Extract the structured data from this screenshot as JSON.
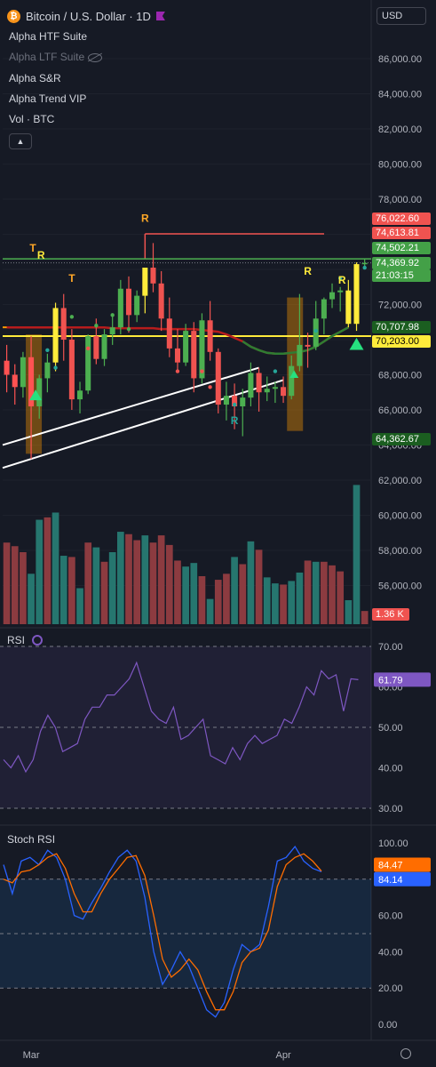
{
  "header": {
    "title": "Bitcoin / U.S. Dollar · 1D",
    "currency": "USD",
    "logo_glyph": "₿"
  },
  "legend": {
    "items": [
      "Alpha HTF Suite",
      "Alpha LTF Suite",
      "Alpha S&R",
      "Alpha Trend VIP",
      "Vol · BTC"
    ],
    "hidden_item_index": 1
  },
  "colors": {
    "bg": "#161a25",
    "up": "#4caf50",
    "down": "#ef5350",
    "vol_up": "#26766f",
    "vol_down": "#8c3b40",
    "rsi": "#7e57c2",
    "stoch_k": "#2962ff",
    "stoch_d": "#ff6d00"
  },
  "price_tags": [
    {
      "label": "76,022.60",
      "value": 76022.6,
      "bg": "#f05350",
      "fg": "#ffffff"
    },
    {
      "label": "74,613.81",
      "value": 74613.81,
      "bg": "#f05350",
      "fg": "#ffffff"
    },
    {
      "label": "74,502.21",
      "value": 74502.21,
      "bg": "#43a047",
      "fg": "#ffffff"
    },
    {
      "label": "74,369.92",
      "value": 74369.92,
      "bg": "#43a047",
      "fg": "#ffffff"
    },
    {
      "label": "21:03:15",
      "value": 73950,
      "bg": "#43a047",
      "fg": "#ffffff"
    },
    {
      "label": "70,707.98",
      "value": 70707.98,
      "bg": "#1b5e20",
      "fg": "#ffffff"
    },
    {
      "label": "70,203.00",
      "value": 70203.0,
      "bg": "#ffeb3b",
      "fg": "#000000"
    },
    {
      "label": "64,362.67",
      "value": 64362.67,
      "bg": "#1b5e20",
      "fg": "#ffffff"
    },
    {
      "label": "1.36 K",
      "value": 0,
      "bg": "#f05350",
      "fg": "#ffffff"
    }
  ],
  "chart_data": [
    {
      "type": "candlestick",
      "title": "Bitcoin / U.S. Dollar · 1D",
      "y_ticks": [
        56000,
        58000,
        60000,
        62000,
        64000,
        66000,
        68000,
        70000,
        72000,
        74000,
        76000,
        78000,
        80000,
        82000,
        84000,
        86000
      ],
      "y_tick_labels": [
        "56,000.00",
        "58,000.00",
        "60,000.00",
        "62,000.00",
        "64,000.00",
        "66,000.00",
        "68,000.00",
        "70,000.00",
        "72,000.00",
        "74,000.00",
        "76,000.00",
        "78,000.00",
        "80,000.00",
        "82,000.00",
        "84,000.00",
        "86,000.00"
      ],
      "x_labels": [
        "Mar",
        "Apr"
      ],
      "x_label_index": [
        3,
        34
      ],
      "candles": [
        [
          68800,
          69700,
          67000,
          68000
        ],
        [
          68000,
          68600,
          66300,
          67300
        ],
        [
          67300,
          69300,
          66700,
          69000
        ],
        [
          69000,
          70200,
          63200,
          66200
        ],
        [
          66200,
          68000,
          65500,
          67800
        ],
        [
          67800,
          69200,
          67000,
          68700
        ],
        [
          68700,
          72100,
          68200,
          71800
        ],
        [
          71800,
          72600,
          68800,
          70000
        ],
        [
          70000,
          70600,
          66000,
          66600
        ],
        [
          66600,
          67600,
          65800,
          67100
        ],
        [
          67100,
          70300,
          66900,
          70200
        ],
        [
          70200,
          71200,
          68600,
          68900
        ],
        [
          68900,
          70600,
          68500,
          70300
        ],
        [
          70300,
          71300,
          69700,
          70700
        ],
        [
          70700,
          73400,
          70300,
          72900
        ],
        [
          72900,
          73600,
          70400,
          71400
        ],
        [
          71400,
          72800,
          71000,
          72500
        ],
        [
          72500,
          74000,
          71500,
          74100
        ],
        [
          74100,
          75500,
          72700,
          73200
        ],
        [
          73200,
          73900,
          70500,
          71200
        ],
        [
          71200,
          72400,
          69000,
          69500
        ],
        [
          69500,
          70600,
          68100,
          68700
        ],
        [
          68700,
          70900,
          68500,
          70500
        ],
        [
          70500,
          71000,
          67000,
          67800
        ],
        [
          67800,
          71500,
          67500,
          71100
        ],
        [
          71100,
          72200,
          68800,
          69300
        ],
        [
          69300,
          69500,
          65800,
          66300
        ],
        [
          66300,
          67600,
          65400,
          66800
        ],
        [
          66800,
          67500,
          64900,
          66200
        ],
        [
          66200,
          67200,
          64500,
          66700
        ],
        [
          66700,
          68700,
          66200,
          68100
        ],
        [
          68100,
          68400,
          65900,
          67000
        ],
        [
          67000,
          67900,
          66500,
          67200
        ],
        [
          67200,
          67600,
          66400,
          67300
        ],
        [
          67300,
          67900,
          66400,
          66800
        ],
        [
          66800,
          69100,
          66600,
          68500
        ],
        [
          68500,
          72600,
          68200,
          69700
        ],
        [
          69700,
          70400,
          68400,
          69600
        ],
        [
          69600,
          72200,
          69400,
          71200
        ],
        [
          71200,
          72400,
          70300,
          72300
        ],
        [
          72300,
          73200,
          71800,
          72700
        ],
        [
          72700,
          73000,
          71600,
          72800
        ],
        [
          72800,
          73400,
          70700,
          70900
        ],
        [
          70900,
          74400,
          70500,
          74300
        ],
        [
          74300,
          74600,
          74100,
          74370
        ]
      ],
      "volume": [
        680,
        650,
        600,
        420,
        870,
        890,
        930,
        570,
        560,
        300,
        680,
        640,
        520,
        600,
        770,
        750,
        700,
        740,
        680,
        740,
        660,
        530,
        480,
        510,
        400,
        210,
        370,
        420,
        560,
        500,
        690,
        620,
        390,
        340,
        330,
        360,
        430,
        530,
        520,
        520,
        490,
        440,
        200,
        1160,
        110
      ],
      "volume_colors": [
        "down",
        "down",
        "down",
        "up",
        "up",
        "down",
        "up",
        "up",
        "down",
        "up",
        "down",
        "up",
        "down",
        "up",
        "up",
        "down",
        "down",
        "up",
        "down",
        "down",
        "down",
        "down",
        "up",
        "up",
        "down",
        "up",
        "down",
        "down",
        "up",
        "down",
        "up",
        "down",
        "up",
        "up",
        "down",
        "up",
        "up",
        "down",
        "up",
        "down",
        "down",
        "down",
        "up",
        "up",
        "down"
      ]
    },
    {
      "type": "line",
      "title": "RSI",
      "y_ticks": [
        30,
        40,
        50,
        60,
        70
      ],
      "y_tick_labels": [
        "30.00",
        "40.00",
        "50.00",
        "60.00",
        "70.00"
      ],
      "last_label": "61.79",
      "values": [
        42,
        40,
        43,
        39,
        42,
        49,
        53,
        50,
        44,
        45,
        46,
        52,
        55,
        55,
        58,
        58,
        60,
        62,
        66,
        60,
        54,
        52,
        51,
        55,
        47,
        48,
        50,
        52,
        43,
        42,
        41,
        45,
        42,
        46,
        48,
        46,
        47,
        48,
        52,
        51,
        55,
        60,
        58,
        64,
        62,
        63,
        54,
        62,
        61.79
      ]
    },
    {
      "type": "line",
      "title": "Stoch RSI",
      "y_ticks": [
        0,
        20,
        40,
        60,
        80,
        100
      ],
      "y_tick_labels": [
        "0.00",
        "20.00",
        "40.00",
        "60.00",
        "80.00",
        "100.00"
      ],
      "series": [
        {
          "name": "",
          "color": "stoch_k",
          "last_label": "84.14",
          "values": [
            88,
            72,
            90,
            92,
            88,
            96,
            92,
            80,
            60,
            58,
            67,
            75,
            84,
            92,
            96,
            90,
            70,
            40,
            22,
            30,
            40,
            32,
            20,
            8,
            4,
            12,
            30,
            44,
            40,
            44,
            65,
            90,
            92,
            98,
            90,
            86,
            84.14
          ]
        },
        {
          "name": "",
          "color": "stoch_d",
          "last_label": "84.47",
          "values": [
            80,
            78,
            84,
            85,
            88,
            92,
            94,
            86,
            72,
            62,
            62,
            72,
            80,
            86,
            92,
            93,
            82,
            60,
            36,
            26,
            30,
            36,
            30,
            18,
            8,
            8,
            18,
            34,
            40,
            42,
            52,
            76,
            88,
            92,
            94,
            90,
            84.47
          ]
        }
      ]
    }
  ]
}
